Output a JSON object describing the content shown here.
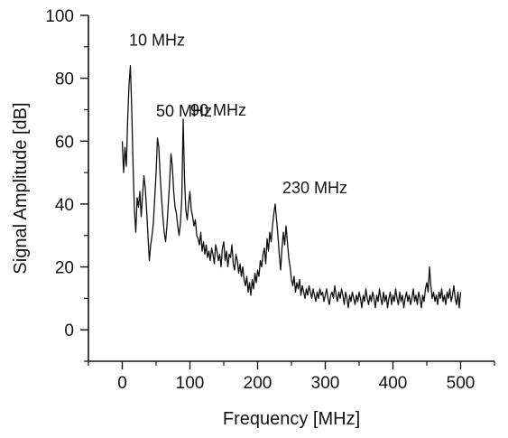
{
  "chart_data": {
    "type": "line",
    "title": "",
    "xlabel": "Frequency [MHz]",
    "ylabel": "Signal Amplitude [dB]",
    "xlim": [
      -50,
      550
    ],
    "ylim": [
      -10,
      100
    ],
    "xticks": [
      0,
      100,
      200,
      300,
      400,
      500
    ],
    "yticks": [
      0,
      20,
      40,
      60,
      80,
      100
    ],
    "xtick_labels": [
      "0",
      "100",
      "200",
      "300",
      "400",
      "500"
    ],
    "ytick_labels": [
      "0",
      "20",
      "40",
      "60",
      "80",
      "100"
    ],
    "grid": false,
    "line_color": "#111111",
    "annotations": [
      {
        "text": "10 MHz",
        "x": 10,
        "y": 84
      },
      {
        "text": "50 MHz",
        "x": 50,
        "y": 61
      },
      {
        "text": "90 MHz",
        "x": 90,
        "y": 67
      },
      {
        "text": "230 MHz",
        "x": 230,
        "y": 40
      }
    ],
    "series": [
      {
        "values": [
          [
            0,
            60
          ],
          [
            2,
            50
          ],
          [
            4,
            58
          ],
          [
            6,
            52
          ],
          [
            8,
            67
          ],
          [
            10,
            78
          ],
          [
            12,
            84
          ],
          [
            14,
            70
          ],
          [
            16,
            52
          ],
          [
            18,
            38
          ],
          [
            20,
            31
          ],
          [
            22,
            42
          ],
          [
            24,
            39
          ],
          [
            26,
            44
          ],
          [
            28,
            36
          ],
          [
            30,
            43
          ],
          [
            32,
            49
          ],
          [
            34,
            45
          ],
          [
            36,
            38
          ],
          [
            38,
            30
          ],
          [
            40,
            22
          ],
          [
            42,
            27
          ],
          [
            44,
            30
          ],
          [
            46,
            34
          ],
          [
            48,
            42
          ],
          [
            50,
            50
          ],
          [
            52,
            61
          ],
          [
            54,
            58
          ],
          [
            56,
            49
          ],
          [
            58,
            42
          ],
          [
            60,
            36
          ],
          [
            62,
            31
          ],
          [
            64,
            28
          ],
          [
            66,
            33
          ],
          [
            68,
            40
          ],
          [
            70,
            47
          ],
          [
            72,
            56
          ],
          [
            74,
            52
          ],
          [
            76,
            44
          ],
          [
            78,
            39
          ],
          [
            80,
            37
          ],
          [
            82,
            33
          ],
          [
            84,
            30
          ],
          [
            86,
            34
          ],
          [
            88,
            42
          ],
          [
            90,
            67
          ],
          [
            92,
            48
          ],
          [
            94,
            38
          ],
          [
            96,
            35
          ],
          [
            98,
            40
          ],
          [
            100,
            44
          ],
          [
            102,
            38
          ],
          [
            104,
            36
          ],
          [
            106,
            33
          ],
          [
            108,
            35
          ],
          [
            110,
            30
          ],
          [
            112,
            29
          ],
          [
            114,
            27
          ],
          [
            116,
            31
          ],
          [
            118,
            25
          ],
          [
            120,
            28
          ],
          [
            122,
            24
          ],
          [
            124,
            27
          ],
          [
            126,
            23
          ],
          [
            128,
            25
          ],
          [
            130,
            22
          ],
          [
            132,
            26
          ],
          [
            134,
            24
          ],
          [
            136,
            21
          ],
          [
            138,
            27
          ],
          [
            140,
            25
          ],
          [
            142,
            22
          ],
          [
            144,
            24
          ],
          [
            146,
            20
          ],
          [
            148,
            26
          ],
          [
            150,
            28
          ],
          [
            152,
            22
          ],
          [
            154,
            25
          ],
          [
            156,
            20
          ],
          [
            158,
            24
          ],
          [
            160,
            23
          ],
          [
            162,
            27
          ],
          [
            164,
            21
          ],
          [
            166,
            19
          ],
          [
            168,
            24
          ],
          [
            170,
            22
          ],
          [
            172,
            18
          ],
          [
            174,
            21
          ],
          [
            176,
            17
          ],
          [
            178,
            20
          ],
          [
            180,
            16
          ],
          [
            182,
            14
          ],
          [
            184,
            17
          ],
          [
            186,
            12
          ],
          [
            188,
            15
          ],
          [
            190,
            11
          ],
          [
            192,
            16
          ],
          [
            194,
            13
          ],
          [
            196,
            18
          ],
          [
            198,
            15
          ],
          [
            200,
            19
          ],
          [
            202,
            17
          ],
          [
            204,
            22
          ],
          [
            206,
            20
          ],
          [
            208,
            24
          ],
          [
            210,
            26
          ],
          [
            212,
            21
          ],
          [
            214,
            29
          ],
          [
            216,
            25
          ],
          [
            218,
            31
          ],
          [
            220,
            28
          ],
          [
            222,
            33
          ],
          [
            224,
            37
          ],
          [
            226,
            40
          ],
          [
            228,
            35
          ],
          [
            230,
            30
          ],
          [
            232,
            24
          ],
          [
            234,
            19
          ],
          [
            236,
            26
          ],
          [
            238,
            31
          ],
          [
            240,
            27
          ],
          [
            242,
            33
          ],
          [
            244,
            28
          ],
          [
            246,
            23
          ],
          [
            248,
            20
          ],
          [
            250,
            16
          ],
          [
            252,
            14
          ],
          [
            254,
            17
          ],
          [
            256,
            12
          ],
          [
            258,
            15
          ],
          [
            260,
            13
          ],
          [
            262,
            16
          ],
          [
            264,
            11
          ],
          [
            266,
            14
          ],
          [
            268,
            12
          ],
          [
            270,
            10
          ],
          [
            272,
            13
          ],
          [
            274,
            11
          ],
          [
            276,
            14
          ],
          [
            278,
            12
          ],
          [
            280,
            10
          ],
          [
            282,
            13
          ],
          [
            284,
            11
          ],
          [
            286,
            9
          ],
          [
            288,
            12
          ],
          [
            290,
            10
          ],
          [
            292,
            13
          ],
          [
            294,
            11
          ],
          [
            296,
            12
          ],
          [
            298,
            9
          ],
          [
            300,
            11
          ],
          [
            302,
            13
          ],
          [
            304,
            10
          ],
          [
            306,
            8
          ],
          [
            308,
            11
          ],
          [
            310,
            12
          ],
          [
            312,
            10
          ],
          [
            314,
            14
          ],
          [
            316,
            11
          ],
          [
            318,
            9
          ],
          [
            320,
            12
          ],
          [
            322,
            10
          ],
          [
            324,
            13
          ],
          [
            326,
            11
          ],
          [
            328,
            8
          ],
          [
            330,
            12
          ],
          [
            332,
            10
          ],
          [
            334,
            7
          ],
          [
            336,
            11
          ],
          [
            338,
            9
          ],
          [
            340,
            12
          ],
          [
            342,
            10
          ],
          [
            344,
            8
          ],
          [
            346,
            11
          ],
          [
            348,
            9
          ],
          [
            350,
            12
          ],
          [
            352,
            10
          ],
          [
            354,
            7
          ],
          [
            356,
            11
          ],
          [
            358,
            9
          ],
          [
            360,
            13
          ],
          [
            362,
            10
          ],
          [
            364,
            8
          ],
          [
            366,
            11
          ],
          [
            368,
            9
          ],
          [
            370,
            12
          ],
          [
            372,
            10
          ],
          [
            374,
            7
          ],
          [
            376,
            11
          ],
          [
            378,
            9
          ],
          [
            380,
            13
          ],
          [
            382,
            10
          ],
          [
            384,
            8
          ],
          [
            386,
            12
          ],
          [
            388,
            9
          ],
          [
            390,
            11
          ],
          [
            392,
            7
          ],
          [
            394,
            10
          ],
          [
            396,
            12
          ],
          [
            398,
            8
          ],
          [
            400,
            11
          ],
          [
            402,
            9
          ],
          [
            404,
            13
          ],
          [
            406,
            10
          ],
          [
            408,
            8
          ],
          [
            410,
            12
          ],
          [
            412,
            9
          ],
          [
            414,
            11
          ],
          [
            416,
            7
          ],
          [
            418,
            10
          ],
          [
            420,
            12
          ],
          [
            422,
            9
          ],
          [
            424,
            11
          ],
          [
            426,
            8
          ],
          [
            428,
            10
          ],
          [
            430,
            13
          ],
          [
            432,
            9
          ],
          [
            434,
            11
          ],
          [
            436,
            8
          ],
          [
            438,
            12
          ],
          [
            440,
            10
          ],
          [
            442,
            7
          ],
          [
            444,
            11
          ],
          [
            446,
            9
          ],
          [
            448,
            13
          ],
          [
            450,
            15
          ],
          [
            452,
            12
          ],
          [
            454,
            20
          ],
          [
            456,
            14
          ],
          [
            458,
            10
          ],
          [
            460,
            12
          ],
          [
            462,
            9
          ],
          [
            464,
            11
          ],
          [
            466,
            8
          ],
          [
            468,
            12
          ],
          [
            470,
            10
          ],
          [
            472,
            13
          ],
          [
            474,
            9
          ],
          [
            476,
            11
          ],
          [
            478,
            8
          ],
          [
            480,
            12
          ],
          [
            482,
            10
          ],
          [
            484,
            13
          ],
          [
            486,
            9
          ],
          [
            488,
            11
          ],
          [
            490,
            14
          ],
          [
            492,
            10
          ],
          [
            494,
            8
          ],
          [
            496,
            12
          ],
          [
            498,
            7
          ],
          [
            500,
            12
          ]
        ]
      }
    ]
  }
}
